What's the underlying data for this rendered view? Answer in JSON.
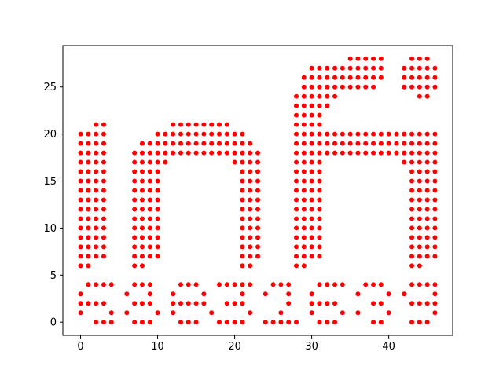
{
  "chart_data": {
    "type": "scatter",
    "title": "",
    "xlabel": "",
    "ylabel": "",
    "xlim": [
      -2.3,
      48.3
    ],
    "ylim": [
      -1.4,
      29.4
    ],
    "x_ticks": [
      0,
      10,
      20,
      30,
      40
    ],
    "y_ticks": [
      0,
      5,
      10,
      15,
      20,
      25
    ],
    "grid": false,
    "legend": "none",
    "marker_color": "#ff0000",
    "rows": [
      {
        "y": 28,
        "x": [
          35,
          36,
          37,
          38,
          39,
          43,
          44,
          45
        ]
      },
      {
        "y": 27,
        "x": [
          30,
          31,
          32,
          33,
          34,
          35,
          36,
          37,
          38,
          39,
          42,
          43,
          44,
          45,
          46
        ]
      },
      {
        "y": 26,
        "x": [
          29,
          30,
          31,
          32,
          33,
          34,
          35,
          36,
          37,
          38,
          39,
          42,
          43,
          44,
          45,
          46
        ]
      },
      {
        "y": 25,
        "x": [
          29,
          30,
          31,
          32,
          33,
          34,
          35,
          36,
          37,
          38,
          42,
          43,
          44,
          45,
          46
        ]
      },
      {
        "y": 24,
        "x": [
          28,
          29,
          30,
          31,
          32,
          33,
          44,
          45
        ]
      },
      {
        "y": 23,
        "x": [
          28,
          29,
          30,
          31,
          32
        ]
      },
      {
        "y": 22,
        "x": [
          28,
          29,
          30,
          31
        ]
      },
      {
        "y": 21,
        "x": [
          2,
          3,
          12,
          13,
          14,
          15,
          16,
          17,
          18,
          19,
          28,
          29,
          30,
          31
        ]
      },
      {
        "y": 20,
        "x": [
          0,
          1,
          2,
          3,
          10,
          11,
          12,
          13,
          14,
          15,
          16,
          17,
          18,
          19,
          20,
          21,
          28,
          29,
          30,
          31,
          32,
          33,
          34,
          35,
          36,
          37,
          38,
          39,
          40,
          41,
          42,
          43,
          44,
          45,
          46
        ]
      },
      {
        "y": 19,
        "x": [
          0,
          1,
          2,
          3,
          8,
          9,
          10,
          11,
          12,
          13,
          14,
          15,
          16,
          17,
          18,
          19,
          20,
          21,
          22,
          28,
          29,
          30,
          31,
          32,
          33,
          34,
          35,
          36,
          37,
          38,
          39,
          40,
          41,
          42,
          43,
          44,
          45,
          46
        ]
      },
      {
        "y": 18,
        "x": [
          0,
          1,
          2,
          3,
          7,
          8,
          9,
          10,
          11,
          12,
          13,
          14,
          15,
          16,
          17,
          18,
          19,
          20,
          21,
          22,
          23,
          28,
          29,
          30,
          31,
          32,
          33,
          34,
          35,
          36,
          37,
          38,
          39,
          40,
          41,
          42,
          43,
          44,
          45,
          46
        ]
      },
      {
        "y": 17,
        "x": [
          0,
          1,
          2,
          3,
          7,
          8,
          9,
          10,
          11,
          20,
          21,
          22,
          23,
          28,
          29,
          30,
          31,
          42,
          43,
          44,
          45,
          46
        ]
      },
      {
        "y": 16,
        "x": [
          0,
          1,
          2,
          3,
          7,
          8,
          9,
          10,
          21,
          22,
          23,
          28,
          29,
          30,
          31,
          43,
          44,
          45,
          46
        ]
      },
      {
        "y": 15,
        "x": [
          0,
          1,
          2,
          3,
          7,
          8,
          9,
          10,
          21,
          22,
          23,
          28,
          29,
          30,
          31,
          43,
          44,
          45,
          46
        ]
      },
      {
        "y": 14,
        "x": [
          0,
          1,
          2,
          3,
          7,
          8,
          9,
          10,
          21,
          22,
          23,
          28,
          29,
          30,
          31,
          43,
          44,
          45,
          46
        ]
      },
      {
        "y": 13,
        "x": [
          0,
          1,
          2,
          3,
          7,
          8,
          9,
          10,
          21,
          22,
          23,
          28,
          29,
          30,
          31,
          43,
          44,
          45,
          46
        ]
      },
      {
        "y": 12,
        "x": [
          0,
          1,
          2,
          3,
          7,
          8,
          9,
          10,
          21,
          22,
          23,
          28,
          29,
          30,
          31,
          43,
          44,
          45,
          46
        ]
      },
      {
        "y": 11,
        "x": [
          0,
          1,
          2,
          3,
          7,
          8,
          9,
          10,
          21,
          22,
          23,
          28,
          29,
          30,
          31,
          43,
          44,
          45,
          46
        ]
      },
      {
        "y": 10,
        "x": [
          0,
          1,
          2,
          3,
          7,
          8,
          9,
          10,
          21,
          22,
          23,
          28,
          29,
          30,
          31,
          43,
          44,
          45,
          46
        ]
      },
      {
        "y": 9,
        "x": [
          0,
          1,
          2,
          3,
          7,
          8,
          9,
          10,
          21,
          22,
          23,
          28,
          29,
          30,
          31,
          43,
          44,
          45,
          46
        ]
      },
      {
        "y": 8,
        "x": [
          0,
          1,
          2,
          3,
          7,
          8,
          9,
          10,
          21,
          22,
          23,
          28,
          29,
          30,
          31,
          43,
          44,
          45,
          46
        ]
      },
      {
        "y": 7,
        "x": [
          0,
          1,
          2,
          3,
          7,
          8,
          9,
          10,
          21,
          22,
          23,
          28,
          29,
          30,
          31,
          43,
          44,
          45,
          46
        ]
      },
      {
        "y": 6,
        "x": [
          0,
          1,
          7,
          8,
          21,
          22,
          28,
          29,
          43,
          44
        ]
      },
      {
        "y": 4,
        "x": [
          1,
          2,
          3,
          4,
          7,
          8,
          9,
          13,
          14,
          15,
          18,
          19,
          20,
          21,
          22,
          25,
          26,
          27,
          31,
          32,
          33,
          34,
          37,
          38,
          39,
          43,
          44,
          45,
          46
        ]
      },
      {
        "y": 3,
        "x": [
          0,
          6,
          9,
          12,
          16,
          21,
          24,
          27,
          30,
          36,
          40,
          42,
          46
        ]
      },
      {
        "y": 2,
        "x": [
          0,
          1,
          2,
          3,
          7,
          8,
          9,
          12,
          13,
          14,
          15,
          16,
          19,
          20,
          21,
          27,
          30,
          31,
          32,
          33,
          38,
          39,
          43,
          44,
          45,
          46
        ]
      },
      {
        "y": 1,
        "x": [
          0,
          4,
          6,
          10,
          12,
          17,
          22,
          26,
          30,
          34,
          36,
          40,
          46
        ]
      },
      {
        "y": 0,
        "x": [
          2,
          3,
          4,
          7,
          8,
          9,
          13,
          14,
          15,
          18,
          19,
          20,
          21,
          24,
          25,
          26,
          27,
          28,
          31,
          32,
          33,
          38,
          39,
          43,
          44,
          45
        ]
      }
    ]
  }
}
